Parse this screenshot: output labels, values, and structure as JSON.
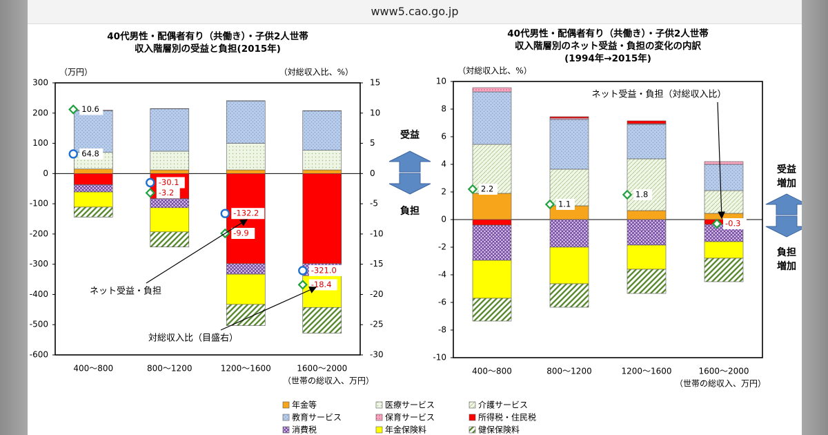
{
  "browser": {
    "url": "www5.cao.go.jp"
  },
  "colors": {
    "pension": "#f7a51b",
    "medical": "#e3eed2",
    "care": "#e4eed2",
    "education": "#b9cdea",
    "childcare": "#f27aa0",
    "incometax": "#ff0000",
    "consumptiontax": "#a98bc8",
    "pensionins": "#ffff00",
    "healthins": "#d6e6c2",
    "marker_blue": "#1e6fd0",
    "marker_green": "#21a040",
    "label_red": "#e00000"
  },
  "legend": {
    "items": [
      {
        "key": "pension",
        "label": "年金等"
      },
      {
        "key": "medical",
        "label": "医療サービス"
      },
      {
        "key": "care",
        "label": "介護サービス"
      },
      {
        "key": "education",
        "label": "教育サービス"
      },
      {
        "key": "childcare",
        "label": "保育サービス"
      },
      {
        "key": "incometax",
        "label": "所得税・住民税"
      },
      {
        "key": "consumptiontax",
        "label": "消費税"
      },
      {
        "key": "pensionins",
        "label": "年金保険料"
      },
      {
        "key": "healthins",
        "label": "健保保険料"
      }
    ]
  },
  "arrows": {
    "benefit": "受益",
    "burden": "負担",
    "benefit_increase": "受益\n増加",
    "burden_increase": "負担\n増加"
  },
  "chart_data": [
    {
      "type": "bar",
      "stacked": true,
      "title": "40代男性・配偶者有り（共働き）・子供2人世帯\n収入階層別の受益と負担(2015年)",
      "ylabel_left": "（万円）",
      "ylabel_right": "（対総収入比、%）",
      "xlabel": "（世帯の総収入、万円）",
      "categories": [
        "400～800",
        "800～1200",
        "1200～1600",
        "1600～2000"
      ],
      "ylim": [
        -600,
        300
      ],
      "yticks": [
        300,
        200,
        100,
        0,
        -100,
        -200,
        -300,
        -400,
        -500,
        -600
      ],
      "ylim_right": [
        -30,
        15
      ],
      "yticks_right": [
        15,
        10,
        5,
        0,
        -5,
        -10,
        -15,
        -20,
        -25,
        -30
      ],
      "series": [
        {
          "key": "pension",
          "values": [
            15,
            12,
            12,
            12
          ]
        },
        {
          "key": "medical",
          "values": [
            55,
            62,
            88,
            65
          ]
        },
        {
          "key": "education",
          "values": [
            138,
            140,
            140,
            130
          ]
        },
        {
          "key": "childcare",
          "values": [
            2,
            1,
            1,
            1
          ]
        },
        {
          "key": "incometax",
          "values": [
            -37,
            -83,
            -298,
            -298
          ]
        },
        {
          "key": "consumptiontax",
          "values": [
            -24,
            -30,
            -35,
            -40
          ]
        },
        {
          "key": "pensionins",
          "values": [
            -50,
            -80,
            -100,
            -105
          ]
        },
        {
          "key": "healthins",
          "values": [
            -33,
            -50,
            -70,
            -85
          ]
        }
      ],
      "net": [
        64.8,
        -30.1,
        -132.2,
        -321.0
      ],
      "ratio": [
        10.6,
        -3.2,
        -9.9,
        -18.4
      ],
      "net_labels": [
        "64.8",
        "-30.1",
        "-132.2",
        "-321.0"
      ],
      "ratio_labels": [
        "10.6",
        "-3.2",
        "-9.9",
        "-18.4"
      ],
      "annotations": [
        "ネット受益・負担",
        "対総収入比（目盛右）"
      ]
    },
    {
      "type": "bar",
      "stacked": true,
      "title": "40代男性・配偶者有り（共働き）・子供2人世帯\n収入階層別のネット受益・負担の変化の内訳\n(1994年→2015年)",
      "ylabel": "（対総収入比、%）",
      "xlabel": "（世帯の総収入、万円）",
      "categories": [
        "400～800",
        "800～1200",
        "1200～1600",
        "1600～2000"
      ],
      "ylim": [
        -10,
        10
      ],
      "yticks": [
        10,
        8,
        6,
        4,
        2,
        0,
        -2,
        -4,
        -6,
        -8,
        -10
      ],
      "series": [
        {
          "key": "pension",
          "values": [
            1.9,
            1.0,
            0.65,
            0.45
          ]
        },
        {
          "key": "care",
          "values": [
            3.55,
            2.65,
            3.75,
            1.65
          ]
        },
        {
          "key": "education",
          "values": [
            3.8,
            3.6,
            2.5,
            1.9
          ]
        },
        {
          "key": "childcare",
          "values": [
            0.3,
            0.1,
            0.05,
            0.2
          ]
        },
        {
          "key": "incometax",
          "values": [
            -0.4,
            0.1,
            0.2,
            -0.35
          ]
        },
        {
          "key": "consumptiontax",
          "values": [
            -2.55,
            -2.0,
            -1.85,
            -1.25
          ]
        },
        {
          "key": "pensionins",
          "values": [
            -2.75,
            -2.65,
            -1.75,
            -1.2
          ]
        },
        {
          "key": "healthins",
          "values": [
            -1.65,
            -1.7,
            -1.75,
            -1.7
          ]
        }
      ],
      "net": [
        2.2,
        1.1,
        1.8,
        -0.3
      ],
      "net_labels": [
        "2.2",
        "1.1",
        "1.8",
        "-0.3"
      ],
      "annotations": [
        "ネット受益・負担（対総収入比）"
      ]
    }
  ]
}
